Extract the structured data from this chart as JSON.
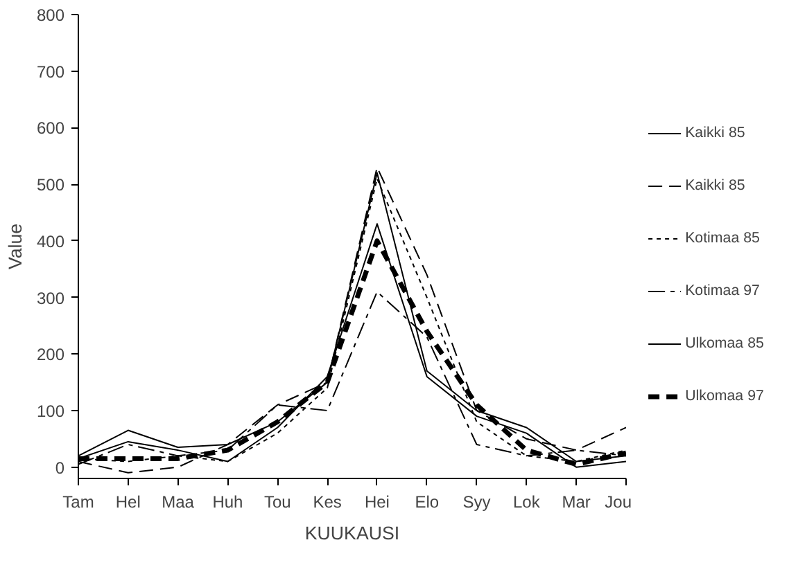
{
  "chart_data": {
    "type": "line",
    "xlabel": "KUUKAUSI",
    "ylabel": "Value",
    "categories": [
      "Tam",
      "Hel",
      "Maa",
      "Huh",
      "Tou",
      "Kes",
      "Hei",
      "Elo",
      "Syy",
      "Lok",
      "Mar",
      "Jou"
    ],
    "ylim": [
      -20,
      800
    ],
    "yticks": [
      0,
      100,
      200,
      300,
      400,
      500,
      600,
      700,
      800
    ],
    "grid": false,
    "legend": "right",
    "marker": "none",
    "series": [
      {
        "name": "Kaikki 85",
        "color": "#000000",
        "line_style": "solid",
        "values": [
          20,
          65,
          35,
          40,
          80,
          150,
          520,
          170,
          100,
          70,
          10,
          20
        ]
      },
      {
        "name": "Kaikki 85",
        "color": "#000000",
        "line_style": "dashed",
        "values": [
          10,
          -10,
          0,
          40,
          110,
          150,
          530,
          340,
          100,
          50,
          30,
          70
        ]
      },
      {
        "name": "Kotimaa 85",
        "color": "#000000",
        "line_style": "dotted",
        "values": [
          15,
          10,
          20,
          10,
          60,
          140,
          510,
          300,
          80,
          20,
          10,
          30
        ]
      },
      {
        "name": "Kotimaa 97",
        "color": "#000000",
        "line_style": "dashdot",
        "values": [
          5,
          40,
          20,
          30,
          110,
          100,
          310,
          230,
          40,
          20,
          30,
          20
        ]
      },
      {
        "name": "Ulkomaa 85",
        "color": "#000000",
        "line_style": "solid",
        "values": [
          15,
          45,
          30,
          10,
          70,
          160,
          430,
          160,
          90,
          60,
          0,
          10
        ]
      },
      {
        "name": "Ulkomaa 97",
        "color": "#000000",
        "line_style": "thick_dashed",
        "values": [
          15,
          15,
          15,
          30,
          80,
          150,
          400,
          240,
          110,
          30,
          5,
          25
        ]
      }
    ]
  }
}
